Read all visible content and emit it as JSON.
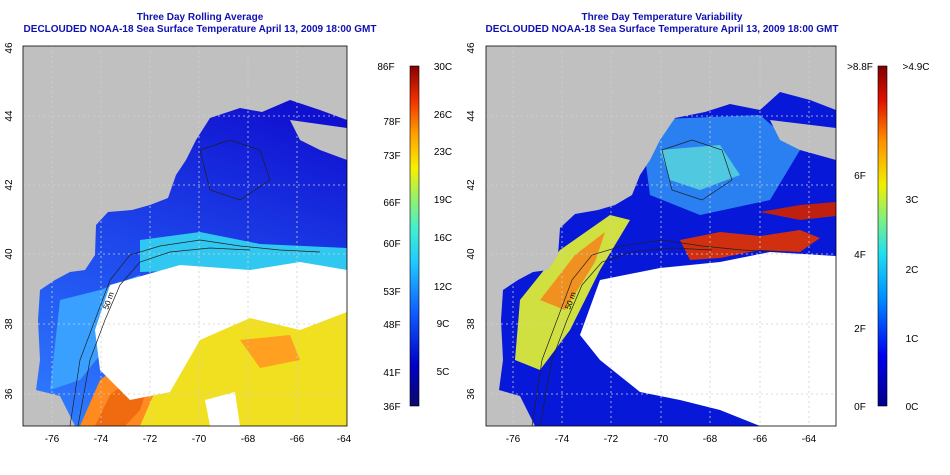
{
  "left_panel": {
    "title_line1": "Three Day Rolling Average",
    "title_line2": "DECLOUDED NOAA-18 Sea Surface Temperature April 13, 2009 18:00 GMT",
    "x_ticks": [
      "-76",
      "-74",
      "-72",
      "-70",
      "-68",
      "-66",
      "-64"
    ],
    "y_ticks": [
      "36",
      "38",
      "40",
      "42",
      "44",
      "46"
    ],
    "contour_labels": [
      "50 m",
      "50 m"
    ],
    "colorbar": {
      "f_labels": [
        "86F",
        "78F",
        "73F",
        "66F",
        "60F",
        "53F",
        "48F",
        "41F",
        "36F"
      ],
      "c_labels": [
        "30C",
        "26C",
        "23C",
        "19C",
        "16C",
        "12C",
        "9C",
        "5C"
      ],
      "c_values": [
        30,
        26,
        23,
        19,
        16,
        12,
        9,
        5
      ],
      "range_c": [
        2,
        30
      ]
    }
  },
  "right_panel": {
    "title_line1": "Three Day Temperature Variability",
    "title_line2": "DECLOUDED NOAA-18 Sea Surface Temperature April 13, 2009 18:00 GMT",
    "x_ticks": [
      "-76",
      "-74",
      "-72",
      "-70",
      "-68",
      "-66",
      "-64"
    ],
    "y_ticks": [
      "36",
      "38",
      "40",
      "42",
      "44",
      "46"
    ],
    "contour_labels": [
      "50 m",
      "50 m"
    ],
    "colorbar": {
      "f_labels": [
        ">8.8F",
        "6F",
        "4F",
        "2F",
        "0F"
      ],
      "f_values": [
        8.8,
        6,
        4,
        2,
        0
      ],
      "c_labels": [
        ">4.9C",
        "3C",
        "2C",
        "1C",
        "0C"
      ],
      "c_values": [
        4.9,
        3,
        2,
        1,
        0
      ],
      "range_c": [
        0,
        4.9
      ]
    }
  },
  "colors": {
    "land": "#c0c0c0",
    "cloud": "#ffffff",
    "title": "#1010b0",
    "contour": "#202020",
    "grid": "#d0d0d0"
  }
}
